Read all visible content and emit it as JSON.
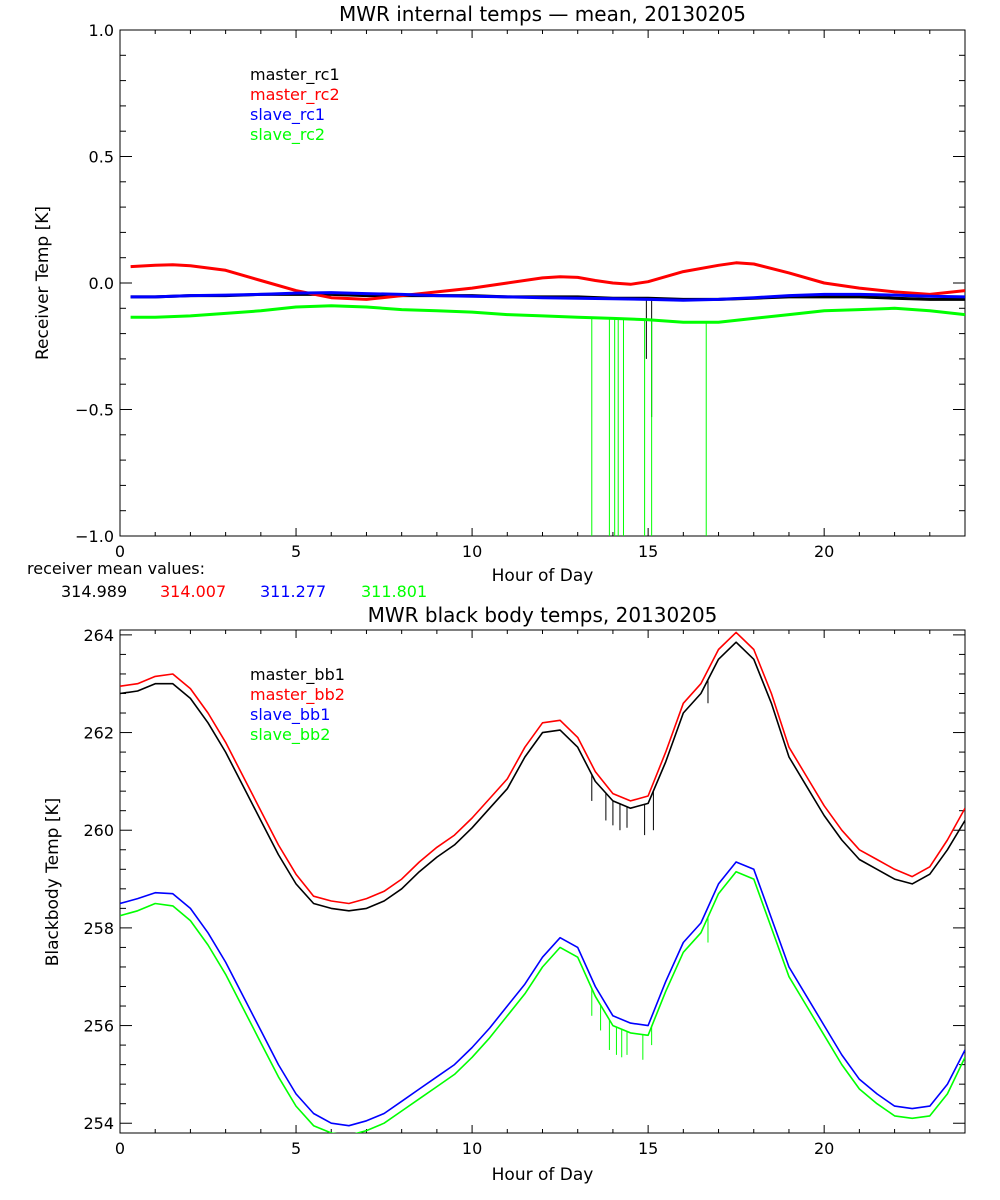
{
  "chart_data": [
    {
      "type": "line",
      "title": "MWR internal temps — mean, 20130205",
      "xlabel": "Hour of Day",
      "ylabel": "Receiver Temp [K]",
      "xlim": [
        0,
        24
      ],
      "ylim": [
        -1.0,
        1.0
      ],
      "x_ticks": [
        0,
        5,
        10,
        15,
        20
      ],
      "y_ticks": [
        -1.0,
        -0.5,
        0.0,
        0.5,
        1.0
      ],
      "y_tick_labels": [
        "−1.0",
        "−0.5",
        "0.0",
        "0.5",
        "1.0"
      ],
      "grid": false,
      "legend": "top-left",
      "series": [
        {
          "name": "master_rc1",
          "color": "#000000",
          "x": [
            0.3,
            1,
            2,
            3,
            4,
            5,
            6,
            7,
            8,
            9,
            10,
            11,
            12,
            13,
            14,
            15,
            16,
            17,
            18,
            19,
            20,
            21,
            22,
            23,
            24
          ],
          "y": [
            -0.055,
            -0.055,
            -0.05,
            -0.05,
            -0.045,
            -0.045,
            -0.045,
            -0.05,
            -0.05,
            -0.05,
            -0.05,
            -0.055,
            -0.055,
            -0.055,
            -0.06,
            -0.06,
            -0.065,
            -0.065,
            -0.06,
            -0.055,
            -0.055,
            -0.055,
            -0.06,
            -0.065,
            -0.065
          ],
          "spikes": [
            {
              "x": 15.1,
              "y": -0.53
            },
            {
              "x": 14.95,
              "y": -0.3
            }
          ]
        },
        {
          "name": "master_rc2",
          "color": "#ff0000",
          "x": [
            0.3,
            1,
            1.5,
            2,
            3,
            4,
            5,
            6,
            7,
            8,
            9,
            10,
            11,
            12,
            12.5,
            13,
            13.5,
            14,
            14.5,
            15,
            16,
            17,
            17.5,
            18,
            19,
            20,
            21,
            22,
            23,
            24
          ],
          "y": [
            0.065,
            0.07,
            0.072,
            0.068,
            0.05,
            0.01,
            -0.03,
            -0.058,
            -0.065,
            -0.05,
            -0.035,
            -0.02,
            0,
            0.02,
            0.025,
            0.022,
            0.01,
            0,
            -0.005,
            0.005,
            0.045,
            0.07,
            0.08,
            0.075,
            0.04,
            0,
            -0.02,
            -0.035,
            -0.045,
            -0.03
          ],
          "spikes": []
        },
        {
          "name": "slave_rc1",
          "color": "#0000ff",
          "x": [
            0.3,
            1,
            2,
            3,
            4,
            5,
            6,
            7,
            8,
            9,
            10,
            11,
            12,
            13,
            14,
            15,
            16,
            17,
            18,
            19,
            20,
            21,
            22,
            23,
            24
          ],
          "y": [
            -0.055,
            -0.055,
            -0.05,
            -0.048,
            -0.045,
            -0.04,
            -0.038,
            -0.042,
            -0.045,
            -0.05,
            -0.052,
            -0.055,
            -0.058,
            -0.06,
            -0.062,
            -0.065,
            -0.068,
            -0.065,
            -0.058,
            -0.05,
            -0.045,
            -0.045,
            -0.048,
            -0.052,
            -0.055
          ],
          "spikes": []
        },
        {
          "name": "slave_rc2",
          "color": "#00ff00",
          "x": [
            0.3,
            1,
            2,
            3,
            4,
            5,
            6,
            7,
            8,
            9,
            10,
            11,
            12,
            13,
            14,
            15,
            16,
            17,
            18,
            19,
            20,
            21,
            22,
            23,
            24
          ],
          "y": [
            -0.135,
            -0.135,
            -0.13,
            -0.12,
            -0.11,
            -0.095,
            -0.09,
            -0.095,
            -0.105,
            -0.11,
            -0.115,
            -0.125,
            -0.13,
            -0.135,
            -0.14,
            -0.145,
            -0.155,
            -0.155,
            -0.14,
            -0.125,
            -0.11,
            -0.105,
            -0.1,
            -0.11,
            -0.125
          ],
          "spikes": [
            {
              "x": 13.4,
              "y": -1.0
            },
            {
              "x": 13.9,
              "y": -1.0
            },
            {
              "x": 14.05,
              "y": -1.0
            },
            {
              "x": 14.15,
              "y": -1.0
            },
            {
              "x": 14.3,
              "y": -1.0
            },
            {
              "x": 14.9,
              "y": -1.0
            },
            {
              "x": 15.1,
              "y": -1.0
            },
            {
              "x": 16.65,
              "y": -1.0
            }
          ]
        }
      ]
    },
    {
      "type": "line",
      "title": "MWR black body temps, 20130205",
      "xlabel": "Hour of Day",
      "ylabel": "Blackbody Temp [K]",
      "xlim": [
        0,
        24
      ],
      "ylim": [
        253.8,
        264.1
      ],
      "x_ticks": [
        0,
        5,
        10,
        15,
        20
      ],
      "y_ticks": [
        254,
        256,
        258,
        260,
        262,
        264
      ],
      "y_tick_labels": [
        "254",
        "256",
        "258",
        "260",
        "262",
        "264"
      ],
      "grid": false,
      "legend": "top-left",
      "series": [
        {
          "name": "master_bb1",
          "color": "#000000",
          "x": [
            0,
            0.5,
            1,
            1.5,
            2,
            2.5,
            3,
            3.5,
            4,
            4.5,
            5,
            5.5,
            6,
            6.5,
            7,
            7.5,
            8,
            8.5,
            9,
            9.5,
            10,
            10.5,
            11,
            11.5,
            12,
            12.5,
            13,
            13.5,
            14,
            14.5,
            15,
            15.5,
            16,
            16.5,
            17,
            17.5,
            18,
            18.5,
            19,
            19.5,
            20,
            20.5,
            21,
            21.5,
            22,
            22.5,
            23,
            23.5,
            24
          ],
          "y": [
            262.8,
            262.85,
            263.0,
            263.0,
            262.7,
            262.2,
            261.6,
            260.9,
            260.2,
            259.5,
            258.9,
            258.5,
            258.4,
            258.35,
            258.4,
            258.55,
            258.8,
            259.15,
            259.45,
            259.7,
            260.05,
            260.45,
            260.85,
            261.5,
            262.0,
            262.05,
            261.7,
            261.0,
            260.6,
            260.45,
            260.55,
            261.4,
            262.4,
            262.8,
            263.5,
            263.85,
            263.5,
            262.6,
            261.5,
            260.9,
            260.3,
            259.8,
            259.4,
            259.2,
            259.0,
            258.9,
            259.1,
            259.6,
            260.2
          ],
          "spikes": [
            {
              "x": 13.4,
              "y": 260.6
            },
            {
              "x": 13.8,
              "y": 260.2
            },
            {
              "x": 14.0,
              "y": 260.1
            },
            {
              "x": 14.2,
              "y": 260.0
            },
            {
              "x": 14.4,
              "y": 260.05
            },
            {
              "x": 14.9,
              "y": 259.9
            },
            {
              "x": 15.15,
              "y": 260.0
            },
            {
              "x": 16.7,
              "y": 262.6
            }
          ]
        },
        {
          "name": "master_bb2",
          "color": "#ff0000",
          "x": [
            0,
            0.5,
            1,
            1.5,
            2,
            2.5,
            3,
            3.5,
            4,
            4.5,
            5,
            5.5,
            6,
            6.5,
            7,
            7.5,
            8,
            8.5,
            9,
            9.5,
            10,
            10.5,
            11,
            11.5,
            12,
            12.5,
            13,
            13.5,
            14,
            14.5,
            15,
            15.5,
            16,
            16.5,
            17,
            17.5,
            18,
            18.5,
            19,
            19.5,
            20,
            20.5,
            21,
            21.5,
            22,
            22.5,
            23,
            23.5,
            24
          ],
          "y": [
            262.95,
            263.0,
            263.15,
            263.2,
            262.9,
            262.4,
            261.8,
            261.1,
            260.4,
            259.7,
            259.1,
            258.65,
            258.55,
            258.5,
            258.6,
            258.75,
            259.0,
            259.35,
            259.65,
            259.9,
            260.25,
            260.65,
            261.05,
            261.7,
            262.2,
            262.25,
            261.9,
            261.2,
            260.75,
            260.6,
            260.7,
            261.6,
            262.6,
            263.0,
            263.7,
            264.05,
            263.7,
            262.8,
            261.7,
            261.1,
            260.5,
            260.0,
            259.6,
            259.4,
            259.2,
            259.05,
            259.25,
            259.8,
            260.45
          ],
          "spikes": []
        },
        {
          "name": "slave_bb1",
          "color": "#0000ff",
          "x": [
            0,
            0.5,
            1,
            1.5,
            2,
            2.5,
            3,
            3.5,
            4,
            4.5,
            5,
            5.5,
            6,
            6.5,
            7,
            7.5,
            8,
            8.5,
            9,
            9.5,
            10,
            10.5,
            11,
            11.5,
            12,
            12.5,
            13,
            13.5,
            14,
            14.5,
            15,
            15.5,
            16,
            16.5,
            17,
            17.5,
            18,
            18.5,
            19,
            19.5,
            20,
            20.5,
            21,
            21.5,
            22,
            22.5,
            23,
            23.5,
            24
          ],
          "y": [
            258.5,
            258.6,
            258.72,
            258.7,
            258.4,
            257.9,
            257.3,
            256.6,
            255.9,
            255.2,
            254.6,
            254.2,
            254.0,
            253.95,
            254.05,
            254.2,
            254.45,
            254.7,
            254.95,
            255.2,
            255.55,
            255.95,
            256.4,
            256.85,
            257.4,
            257.8,
            257.6,
            256.8,
            256.2,
            256.05,
            256.0,
            256.9,
            257.7,
            258.1,
            258.9,
            259.35,
            259.2,
            258.2,
            257.2,
            256.6,
            256.0,
            255.4,
            254.9,
            254.6,
            254.35,
            254.3,
            254.35,
            254.8,
            255.5
          ],
          "spikes": []
        },
        {
          "name": "slave_bb2",
          "color": "#00ff00",
          "x": [
            0,
            0.5,
            1,
            1.5,
            2,
            2.5,
            3,
            3.5,
            4,
            4.5,
            5,
            5.5,
            6,
            6.5,
            7,
            7.5,
            8,
            8.5,
            9,
            9.5,
            10,
            10.5,
            11,
            11.5,
            12,
            12.5,
            13,
            13.5,
            14,
            14.5,
            15,
            15.5,
            16,
            16.5,
            17,
            17.5,
            18,
            18.5,
            19,
            19.5,
            20,
            20.5,
            21,
            21.5,
            22,
            22.5,
            23,
            23.5,
            24
          ],
          "y": [
            258.25,
            258.35,
            258.5,
            258.45,
            258.15,
            257.65,
            257.05,
            256.35,
            255.65,
            254.95,
            254.35,
            253.95,
            253.8,
            253.75,
            253.85,
            254.0,
            254.25,
            254.5,
            254.75,
            255.0,
            255.35,
            255.75,
            256.2,
            256.65,
            257.2,
            257.6,
            257.4,
            256.6,
            256.0,
            255.85,
            255.8,
            256.7,
            257.5,
            257.9,
            258.7,
            259.15,
            259.0,
            258.0,
            257.0,
            256.4,
            255.8,
            255.2,
            254.7,
            254.4,
            254.15,
            254.1,
            254.15,
            254.6,
            255.35
          ],
          "spikes": [
            {
              "x": 13.4,
              "y": 256.2
            },
            {
              "x": 13.65,
              "y": 255.9
            },
            {
              "x": 13.9,
              "y": 255.5
            },
            {
              "x": 14.1,
              "y": 255.4
            },
            {
              "x": 14.25,
              "y": 255.35
            },
            {
              "x": 14.4,
              "y": 255.4
            },
            {
              "x": 14.85,
              "y": 255.3
            },
            {
              "x": 15.1,
              "y": 255.6
            },
            {
              "x": 16.7,
              "y": 257.7
            }
          ]
        }
      ]
    }
  ],
  "receiver_means": {
    "label": "receiver mean values:",
    "values": [
      {
        "text": "314.989",
        "color": "#000000"
      },
      {
        "text": "314.007",
        "color": "#ff0000"
      },
      {
        "text": "311.277",
        "color": "#0000ff"
      },
      {
        "text": "311.801",
        "color": "#00ff00"
      }
    ]
  }
}
